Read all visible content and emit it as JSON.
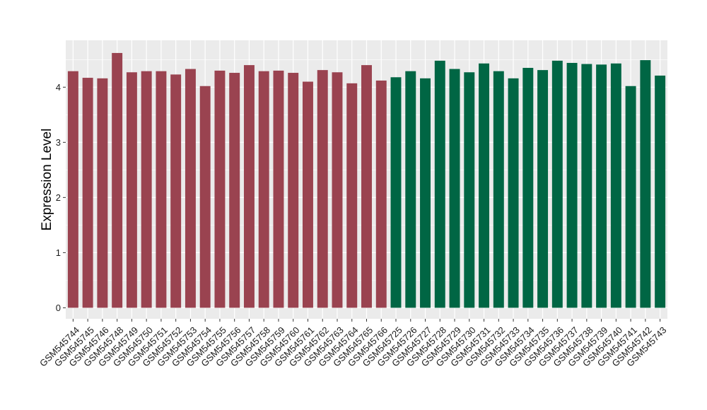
{
  "chart_data": {
    "type": "bar",
    "title": "",
    "xlabel": "",
    "ylabel": "Expression Level",
    "ylim": [
      -0.2,
      4.85
    ],
    "yticks": [
      0,
      1,
      2,
      3,
      4
    ],
    "grid": true,
    "legend": "none",
    "colors": {
      "panel": "#ebebeb",
      "grid": "#ffffff"
    },
    "categories": [
      "GSM545744",
      "GSM545745",
      "GSM545746",
      "GSM545748",
      "GSM545749",
      "GSM545750",
      "GSM545751",
      "GSM545752",
      "GSM545753",
      "GSM545754",
      "GSM545755",
      "GSM545756",
      "GSM545757",
      "GSM545758",
      "GSM545759",
      "GSM545760",
      "GSM545761",
      "GSM545762",
      "GSM545763",
      "GSM545764",
      "GSM545765",
      "GSM545766",
      "GSM545725",
      "GSM545726",
      "GSM545727",
      "GSM545728",
      "GSM545729",
      "GSM545730",
      "GSM545731",
      "GSM545732",
      "GSM545733",
      "GSM545734",
      "GSM545735",
      "GSM545736",
      "GSM545737",
      "GSM545738",
      "GSM545739",
      "GSM545740",
      "GSM545741",
      "GSM545742",
      "GSM545743"
    ],
    "values": [
      4.29,
      4.17,
      4.16,
      4.62,
      4.27,
      4.29,
      4.29,
      4.23,
      4.33,
      4.02,
      4.3,
      4.26,
      4.4,
      4.29,
      4.3,
      4.26,
      4.1,
      4.31,
      4.27,
      4.07,
      4.4,
      4.12,
      4.18,
      4.29,
      4.16,
      4.48,
      4.33,
      4.27,
      4.43,
      4.29,
      4.16,
      4.35,
      4.31,
      4.48,
      4.44,
      4.42,
      4.41,
      4.43,
      4.02,
      4.49,
      4.21
    ],
    "bar_colors": [
      "#9a4350",
      "#9a4350",
      "#9a4350",
      "#9a4350",
      "#9a4350",
      "#9a4350",
      "#9a4350",
      "#9a4350",
      "#9a4350",
      "#9a4350",
      "#9a4350",
      "#9a4350",
      "#9a4350",
      "#9a4350",
      "#9a4350",
      "#9a4350",
      "#9a4350",
      "#9a4350",
      "#9a4350",
      "#9a4350",
      "#9a4350",
      "#9a4350",
      "#006644",
      "#006644",
      "#006644",
      "#006644",
      "#006644",
      "#006644",
      "#006644",
      "#006644",
      "#006644",
      "#006644",
      "#006644",
      "#006644",
      "#006644",
      "#006644",
      "#006644",
      "#006644",
      "#006644",
      "#006644",
      "#006644"
    ]
  }
}
